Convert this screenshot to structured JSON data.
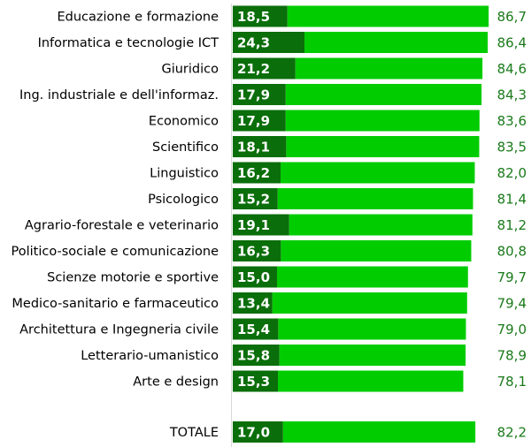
{
  "chart_data": {
    "type": "bar",
    "orientation": "horizontal",
    "stacked": true,
    "categories": [
      "Educazione e formazione",
      "Informatica e tecnologie ICT",
      "Giuridico",
      "Ing. industriale e dell'informaz.",
      "Economico",
      "Scientifico",
      "Linguistico",
      "Psicologico",
      "Agrario-forestale e veterinario",
      "Politico-sociale e comunicazione",
      "Scienze motorie e sportive",
      "Medico-sanitario e farmaceutico",
      "Architettura e Ingegneria civile",
      "Letterario-umanistico",
      "Arte e design",
      "TOTALE"
    ],
    "series": [
      {
        "values": [
          18.5,
          24.3,
          21.2,
          17.9,
          17.9,
          18.1,
          16.2,
          15.2,
          19.1,
          16.3,
          15.0,
          13.4,
          15.4,
          15.8,
          15.3,
          17.0
        ],
        "color": "#0a6e0a"
      },
      {
        "values": [
          68.2,
          62.1,
          63.4,
          66.4,
          65.7,
          65.4,
          65.8,
          66.2,
          62.1,
          64.5,
          64.7,
          66.0,
          63.6,
          63.1,
          62.8,
          65.2
        ],
        "color": "#00cc00"
      }
    ],
    "value_labels": [
      "18,5",
      "24,3",
      "21,2",
      "17,9",
      "17,9",
      "18,1",
      "16,2",
      "15,2",
      "19,1",
      "16,3",
      "15,0",
      "13,4",
      "15,4",
      "15,8",
      "15,3",
      "17,0"
    ],
    "total_labels": [
      "86,7",
      "86,4",
      "84,6",
      "84,3",
      "83,6",
      "83,5",
      "82,0",
      "81,4",
      "81,2",
      "80,8",
      "79,7",
      "79,4",
      "79,0",
      "78,9",
      "78,1",
      "82,2"
    ],
    "xlim": [
      0,
      100
    ],
    "grid": false,
    "legend": "none"
  }
}
